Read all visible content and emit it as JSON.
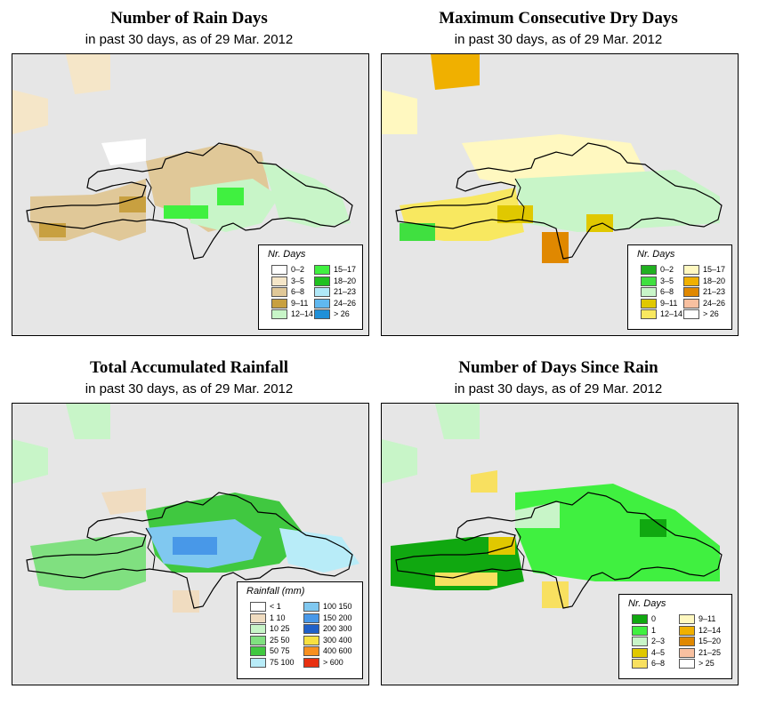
{
  "panels": [
    {
      "id": "rain_days",
      "title": "Number of Rain Days",
      "subtitle": "in past 30 days, as of  29 Mar. 2012",
      "legend": {
        "title": "Nr. Days",
        "left": [
          {
            "label": "0–2",
            "color": "#ffffff"
          },
          {
            "label": "3–5",
            "color": "#f5e6c8"
          },
          {
            "label": "6–8",
            "color": "#e0c898"
          },
          {
            "label": "9–11",
            "color": "#c8a040"
          },
          {
            "label": "12–14",
            "color": "#c8f5c8"
          }
        ],
        "right": [
          {
            "label": "15–17",
            "color": "#40f040"
          },
          {
            "label": "18–20",
            "color": "#20c020"
          },
          {
            "label": "21–23",
            "color": "#b0e8f8"
          },
          {
            "label": "24–26",
            "color": "#60b8f0"
          },
          {
            "label": "> 26",
            "color": "#2090d8"
          }
        ]
      }
    },
    {
      "id": "dry_days",
      "title": "Maximum Consecutive Dry Days",
      "subtitle": "in past 30 days, as of  29 Mar. 2012",
      "legend": {
        "title": "Nr. Days",
        "left": [
          {
            "label": "0–2",
            "color": "#20b020"
          },
          {
            "label": "3–5",
            "color": "#40e040"
          },
          {
            "label": "6–8",
            "color": "#c8f5c8"
          },
          {
            "label": "9–11",
            "color": "#e0c800"
          },
          {
            "label": "12–14",
            "color": "#f8e860"
          }
        ],
        "right": [
          {
            "label": "15–17",
            "color": "#fff8c0"
          },
          {
            "label": "18–20",
            "color": "#f0b000"
          },
          {
            "label": "21–23",
            "color": "#e08800"
          },
          {
            "label": "24–26",
            "color": "#f8c0a0"
          },
          {
            "label": "> 26",
            "color": "#ffffff"
          }
        ]
      }
    },
    {
      "id": "rainfall",
      "title": "Total Accumulated Rainfall",
      "subtitle": "in past 30 days, as of  29 Mar. 2012",
      "legend": {
        "title": "Rainfall (mm)",
        "left": [
          {
            "label": "< 1",
            "color": "#ffffff"
          },
          {
            "label": "1    10",
            "color": "#f0dcc0"
          },
          {
            "label": "10    25",
            "color": "#c8f5c8"
          },
          {
            "label": "25    50",
            "color": "#80e080"
          },
          {
            "label": "50    75",
            "color": "#40c840"
          },
          {
            "label": "75  100",
            "color": "#b8ecf8"
          }
        ],
        "right": [
          {
            "label": "100  150",
            "color": "#80c8f0"
          },
          {
            "label": "150  200",
            "color": "#4898e8"
          },
          {
            "label": "200  300",
            "color": "#2060c8"
          },
          {
            "label": "300  400",
            "color": "#f8e040"
          },
          {
            "label": "400  600",
            "color": "#f89020"
          },
          {
            "label": "> 600",
            "color": "#e83010"
          }
        ]
      }
    },
    {
      "id": "days_since",
      "title": "Number of Days Since Rain",
      "subtitle": "in past 30 days, as of  29 Mar. 2012",
      "legend": {
        "title": "Nr. Days",
        "left": [
          {
            "label": "0",
            "color": "#10a810"
          },
          {
            "label": "1",
            "color": "#40f040"
          },
          {
            "label": "2–3",
            "color": "#c8f5c8"
          },
          {
            "label": "4–5",
            "color": "#e0c800"
          },
          {
            "label": "6–8",
            "color": "#f8e060"
          }
        ],
        "right": [
          {
            "label": "9–11",
            "color": "#fff8c0"
          },
          {
            "label": "12–14",
            "color": "#f0b000"
          },
          {
            "label": "15–20",
            "color": "#e08800"
          },
          {
            "label": "21–25",
            "color": "#f8c0a0"
          },
          {
            "label": "> 25",
            "color": "#ffffff"
          }
        ]
      }
    }
  ]
}
